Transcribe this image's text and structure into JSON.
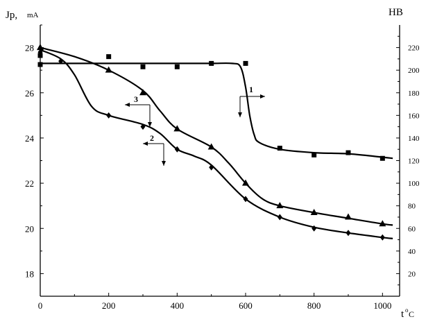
{
  "chart_data": {
    "type": "line",
    "title": "",
    "xlabel_main": "t",
    "xlabel_sup": "o",
    "xlabel_sub": "C",
    "ylabel_left_main": "Jp,",
    "ylabel_left_unit": "mA",
    "ylabel_right": "HB",
    "xlim": [
      0,
      1050
    ],
    "ylim_left": [
      17,
      29
    ],
    "ylim_right": [
      0,
      240
    ],
    "x_ticks": [
      0,
      200,
      400,
      600,
      800,
      1000
    ],
    "x_tick_labels": [
      "0",
      "200",
      "400",
      "600",
      "800",
      "1000"
    ],
    "y_left_ticks": [
      18,
      20,
      22,
      24,
      26,
      28
    ],
    "y_left_tick_labels": [
      "18",
      "20",
      "22",
      "24",
      "26",
      "28"
    ],
    "y_right_ticks": [
      20,
      40,
      60,
      80,
      100,
      120,
      140,
      160,
      180,
      200,
      220
    ],
    "y_right_tick_labels": [
      "20",
      "40",
      "60",
      "80",
      "100",
      "120",
      "140",
      "160",
      "180",
      "200",
      "220"
    ],
    "series": [
      {
        "label": "1",
        "axis": "right",
        "marker": "square",
        "points": [
          [
            0,
            205
          ],
          [
            0,
            213
          ],
          [
            200,
            212
          ],
          [
            300,
            203
          ],
          [
            400,
            203
          ],
          [
            500,
            206
          ],
          [
            600,
            206
          ],
          [
            700,
            131
          ],
          [
            800,
            125
          ],
          [
            900,
            127
          ],
          [
            1000,
            122
          ]
        ],
        "curve": [
          [
            0,
            206
          ],
          [
            200,
            206
          ],
          [
            400,
            206
          ],
          [
            500,
            206
          ],
          [
            560,
            206
          ],
          [
            585,
            203
          ],
          [
            600,
            185
          ],
          [
            612,
            160
          ],
          [
            625,
            143
          ],
          [
            640,
            136
          ],
          [
            700,
            130
          ],
          [
            800,
            127
          ],
          [
            900,
            126
          ],
          [
            1000,
            123
          ],
          [
            1030,
            122
          ]
        ]
      },
      {
        "label": "2",
        "axis": "left",
        "marker": "diamond",
        "points": [
          [
            0,
            27.8
          ],
          [
            60,
            27.4
          ],
          [
            200,
            25.0
          ],
          [
            300,
            24.5
          ],
          [
            400,
            23.5
          ],
          [
            500,
            22.7
          ],
          [
            600,
            21.3
          ],
          [
            700,
            20.5
          ],
          [
            800,
            20.0
          ],
          [
            900,
            19.8
          ],
          [
            1000,
            19.6
          ]
        ],
        "curve": [
          [
            0,
            27.9
          ],
          [
            60,
            27.5
          ],
          [
            100,
            26.8
          ],
          [
            150,
            25.4
          ],
          [
            200,
            25.0
          ],
          [
            300,
            24.6
          ],
          [
            350,
            24.2
          ],
          [
            400,
            23.5
          ],
          [
            450,
            23.2
          ],
          [
            500,
            22.8
          ],
          [
            600,
            21.3
          ],
          [
            700,
            20.5
          ],
          [
            800,
            20.05
          ],
          [
            900,
            19.8
          ],
          [
            1000,
            19.6
          ],
          [
            1030,
            19.55
          ]
        ]
      },
      {
        "label": "3",
        "axis": "left",
        "marker": "triangle",
        "points": [
          [
            0,
            28.0
          ],
          [
            200,
            27.0
          ],
          [
            300,
            26.0
          ],
          [
            400,
            24.4
          ],
          [
            500,
            23.6
          ],
          [
            600,
            22.0
          ],
          [
            700,
            21.0
          ],
          [
            800,
            20.7
          ],
          [
            900,
            20.5
          ],
          [
            1000,
            20.2
          ]
        ],
        "curve": [
          [
            0,
            28.0
          ],
          [
            100,
            27.6
          ],
          [
            200,
            27.0
          ],
          [
            300,
            26.1
          ],
          [
            350,
            25.2
          ],
          [
            400,
            24.4
          ],
          [
            500,
            23.6
          ],
          [
            550,
            22.9
          ],
          [
            600,
            22.0
          ],
          [
            650,
            21.3
          ],
          [
            700,
            21.0
          ],
          [
            800,
            20.7
          ],
          [
            900,
            20.45
          ],
          [
            1000,
            20.2
          ],
          [
            1030,
            20.15
          ]
        ]
      }
    ]
  }
}
